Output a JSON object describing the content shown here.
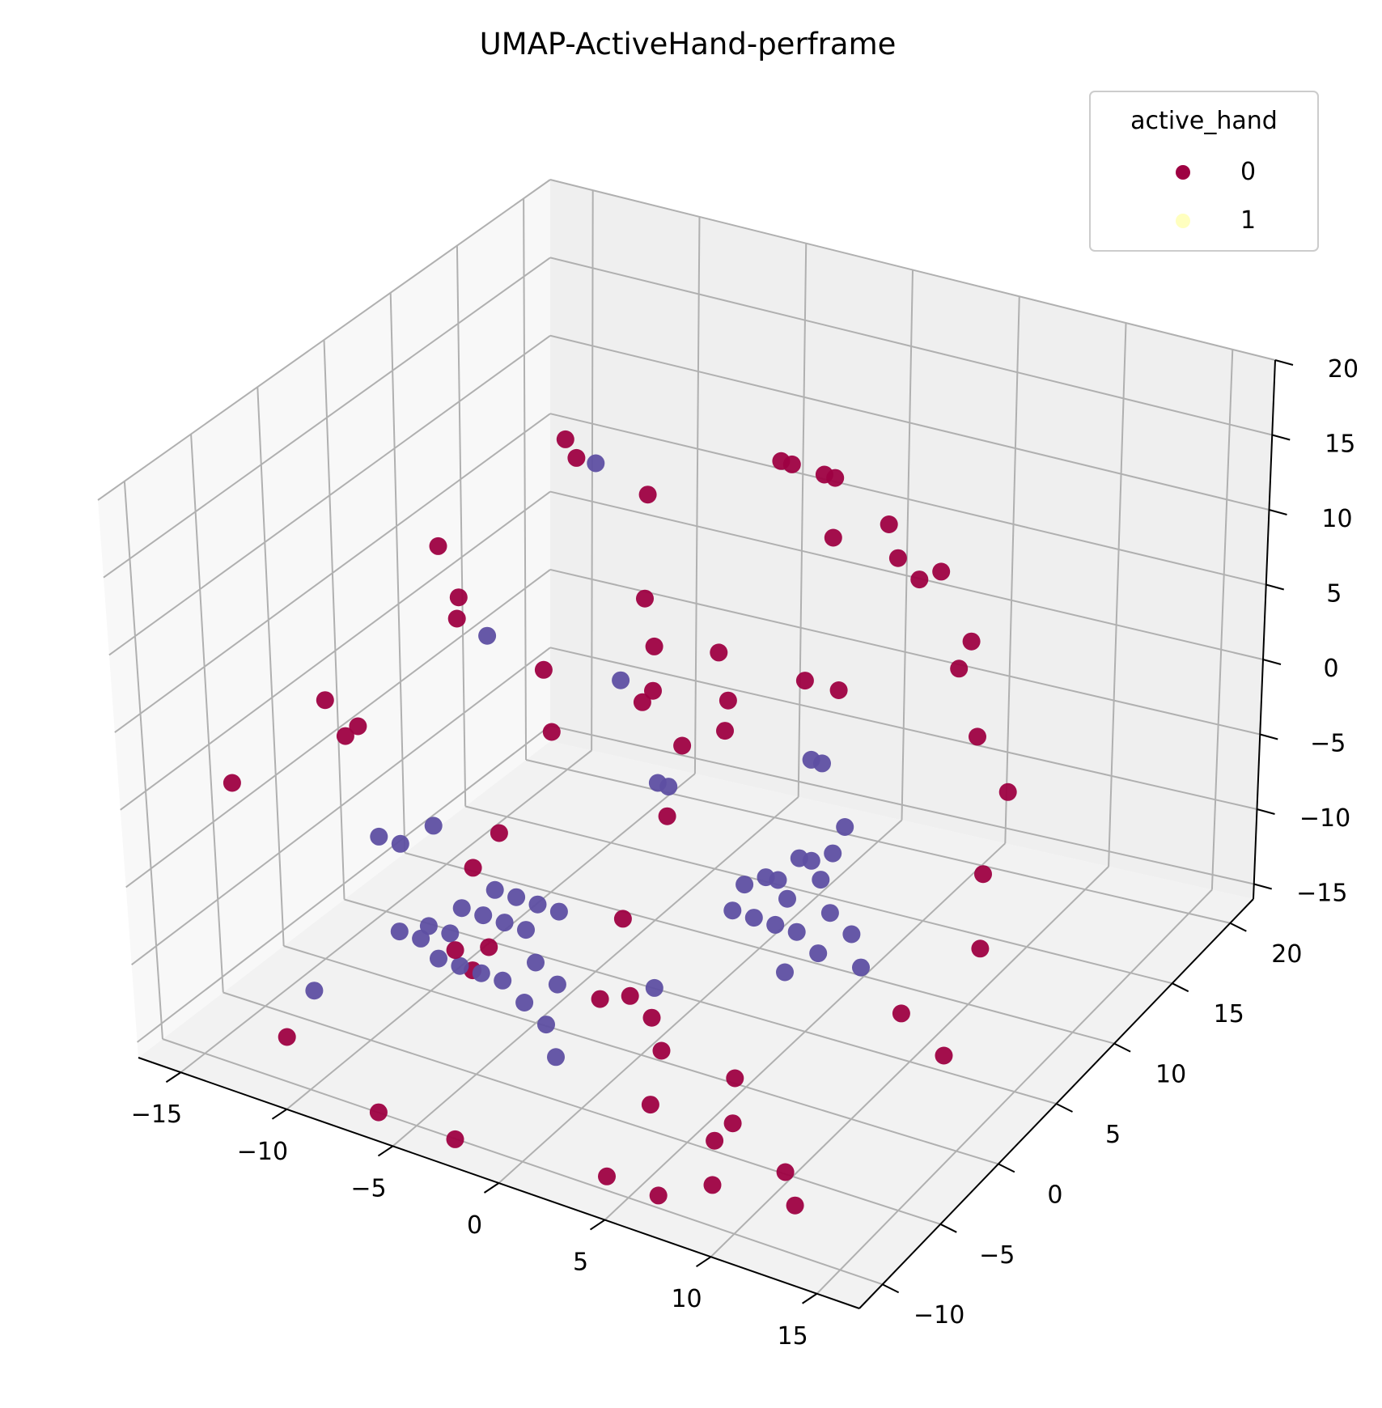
{
  "chart_data": {
    "type": "scatter",
    "projection": "3d",
    "title": "UMAP-ActiveHand-perframe",
    "xlabel": "",
    "ylabel": "",
    "zlabel": "",
    "xlim": [
      -17,
      17
    ],
    "ylim": [
      -12,
      22
    ],
    "zlim": [
      -16,
      20
    ],
    "x_ticks": [
      "−15",
      "−10",
      "−5",
      "0",
      "5",
      "10",
      "15"
    ],
    "y_ticks": [
      "−10",
      "−5",
      "0",
      "5",
      "10",
      "15",
      "20"
    ],
    "z_ticks": [
      "−15",
      "−10",
      "−5",
      "0",
      "5",
      "10",
      "15",
      "20"
    ],
    "grid": true,
    "legend": {
      "title": "active_hand",
      "position": "top-right",
      "entries": [
        {
          "label": "0",
          "color": "#9e0142"
        },
        {
          "label": "1",
          "color": "#ffffbf"
        }
      ]
    },
    "colors": {
      "0": "#9e0142",
      "1": "#ffffbf",
      "points_rendered_b": "#5e4fa2"
    },
    "series": [
      {
        "name": "0",
        "color": "#9e0142",
        "points": [
          [
            -9,
            10,
            14
          ],
          [
            -8.5,
            10,
            13
          ],
          [
            -12,
            5,
            9
          ],
          [
            -10.5,
            4,
            7
          ],
          [
            -10,
            3,
            6.5
          ],
          [
            -14.5,
            0,
            1
          ],
          [
            -13,
            0,
            0
          ],
          [
            -13,
            -1,
            0
          ],
          [
            -16,
            -5,
            -2
          ],
          [
            -4,
            8,
            14
          ],
          [
            -3,
            6,
            9
          ],
          [
            -2,
            5,
            7
          ],
          [
            -1.5,
            4,
            5
          ],
          [
            -2,
            4,
            4
          ],
          [
            -6,
            3,
            5
          ],
          [
            -4.5,
            1,
            3
          ],
          [
            -6,
            -3,
            -4
          ],
          [
            -6.5,
            0,
            -4
          ],
          [
            1,
            10,
            17
          ],
          [
            1.5,
            10,
            17
          ],
          [
            3,
            10,
            17
          ],
          [
            3.5,
            10,
            17
          ],
          [
            4,
            9,
            14
          ],
          [
            1,
            5,
            8
          ],
          [
            2,
            4,
            6
          ],
          [
            1,
            2,
            4
          ],
          [
            2,
            -1,
            2
          ],
          [
            3,
            2,
            6
          ],
          [
            6,
            10,
            15
          ],
          [
            7,
            9,
            14
          ],
          [
            8,
            9,
            13
          ],
          [
            9,
            9,
            14
          ],
          [
            5,
            5,
            8
          ],
          [
            6,
            6,
            7
          ],
          [
            11,
            8,
            11
          ],
          [
            11,
            7,
            10
          ],
          [
            13,
            5,
            8
          ],
          [
            15,
            4,
            6
          ],
          [
            15,
            2,
            2
          ],
          [
            16,
            0,
            -1
          ],
          [
            14,
            -3,
            -4
          ],
          [
            16,
            -3,
            -6
          ],
          [
            -4,
            -8,
            -5
          ],
          [
            -3,
            -7,
            -5
          ],
          [
            1,
            -3,
            -4
          ],
          [
            3,
            -6,
            -6
          ],
          [
            4,
            -6,
            -7
          ],
          [
            5,
            -7,
            -8
          ],
          [
            9,
            -8,
            -7
          ],
          [
            10,
            -10,
            -8
          ],
          [
            13,
            -11,
            -9
          ],
          [
            14,
            -12,
            -10
          ],
          [
            -11,
            -10,
            -13
          ],
          [
            -5,
            -13,
            -13
          ],
          [
            -2,
            -12,
            -14
          ],
          [
            4,
            -10,
            -15
          ],
          [
            7,
            -11,
            -14
          ],
          [
            5,
            -8,
            -11
          ],
          [
            8,
            -8,
            -12
          ],
          [
            9,
            -10,
            -13
          ],
          [
            -5,
            -5,
            -9
          ],
          [
            1,
            -5,
            -8
          ]
        ]
      },
      {
        "name": "1",
        "color": "#5e4fa2",
        "points": [
          [
            -10,
            -2,
            -5
          ],
          [
            -9,
            -1,
            -4
          ],
          [
            -11,
            -2,
            -5
          ],
          [
            -7,
            9,
            14
          ],
          [
            -8,
            2,
            7
          ],
          [
            -3,
            4,
            5
          ],
          [
            1,
            0,
            3
          ],
          [
            1.5,
            0,
            3
          ],
          [
            7,
            2,
            6
          ],
          [
            7.5,
            2,
            6
          ],
          [
            -7,
            -5,
            -7
          ],
          [
            -6,
            -5,
            -7
          ],
          [
            -5,
            -4,
            -6
          ],
          [
            -4,
            -4,
            -6
          ],
          [
            -3,
            -4,
            -6
          ],
          [
            -5,
            -3,
            -5
          ],
          [
            -6,
            -4,
            -6
          ],
          [
            -4,
            -3,
            -5
          ],
          [
            -3,
            -3,
            -5
          ],
          [
            -2,
            -3,
            -5
          ],
          [
            -5,
            -6,
            -8
          ],
          [
            -4,
            -6,
            -8
          ],
          [
            -3,
            -6,
            -8
          ],
          [
            -2,
            -5,
            -7
          ],
          [
            -6,
            -6,
            -8
          ],
          [
            -9,
            -4,
            -9
          ],
          [
            -8,
            -4,
            -9
          ],
          [
            -2,
            -6,
            -9
          ],
          [
            -1,
            -5,
            -8
          ],
          [
            5,
            0,
            -2
          ],
          [
            6,
            1,
            -2
          ],
          [
            7,
            0,
            -2
          ],
          [
            8,
            1,
            -1
          ],
          [
            6,
            -1,
            -3
          ],
          [
            7,
            -1,
            -3
          ],
          [
            8,
            -1,
            -3
          ],
          [
            9,
            0,
            -2
          ],
          [
            5,
            -1,
            -3
          ],
          [
            6,
            0,
            -1
          ],
          [
            7,
            1,
            0
          ],
          [
            8,
            2,
            0
          ],
          [
            9,
            -1,
            -4
          ],
          [
            10,
            0,
            -3
          ],
          [
            8,
            3,
            1
          ],
          [
            7,
            2,
            -1
          ],
          [
            8,
            -2,
            -5
          ],
          [
            11,
            -1,
            -4
          ],
          [
            3,
            -4,
            -7
          ],
          [
            -1,
            -6,
            -10
          ],
          [
            0,
            -7,
            -11
          ],
          [
            -12,
            -6,
            -13
          ]
        ]
      }
    ]
  }
}
